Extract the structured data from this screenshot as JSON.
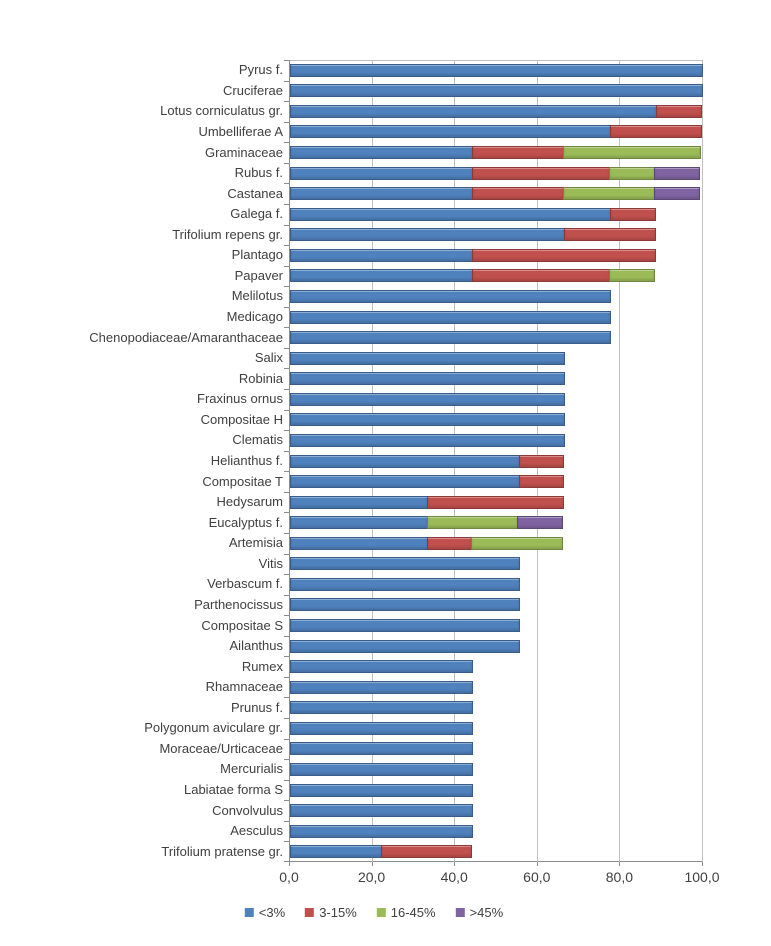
{
  "chart_data": {
    "type": "bar",
    "orientation": "horizontal",
    "stacked": true,
    "title": "",
    "xlabel": "",
    "ylabel": "",
    "xlim": [
      0,
      100
    ],
    "x_tick_labels": [
      "0,0",
      "20,0",
      "40,0",
      "60,0",
      "80,0",
      "100,0"
    ],
    "x_tick_values": [
      0,
      20,
      40,
      60,
      80,
      100
    ],
    "grid": "vertical",
    "legend_position": "bottom",
    "categories": [
      "Pyrus f.",
      "Cruciferae",
      "Lotus corniculatus gr.",
      "Umbelliferae A",
      "Graminaceae",
      "Rubus f.",
      "Castanea",
      "Galega f.",
      "Trifolium repens gr.",
      "Plantago",
      "Papaver",
      "Melilotus",
      "Medicago",
      "Chenopodiaceae/Amaranthaceae",
      "Salix",
      "Robinia",
      "Fraxinus ornus",
      "Compositae H",
      "Clematis",
      "Helianthus f.",
      "Compositae T",
      "Hedysarum",
      "Eucalyptus f.",
      "Artemisia",
      "Vitis",
      "Verbascum f.",
      "Parthenocissus",
      "Compositae S",
      "Ailanthus",
      "Rumex",
      "Rhamnaceae",
      "Prunus f.",
      "Polygonum aviculare gr.",
      "Moraceae/Urticaceae",
      "Mercurialis",
      "Labiatae forma S",
      "Convolvulus",
      "Aesculus",
      "Trifolium pratense gr."
    ],
    "series": [
      {
        "name": "<3%",
        "color": "#4F81BD",
        "values": [
          100,
          100,
          88.9,
          77.8,
          44.4,
          44.4,
          44.4,
          77.8,
          66.7,
          44.4,
          44.4,
          77.8,
          77.8,
          77.8,
          66.7,
          66.7,
          66.7,
          66.7,
          66.7,
          55.6,
          55.6,
          33.3,
          33.3,
          33.3,
          55.6,
          55.6,
          55.6,
          55.6,
          55.6,
          44.4,
          44.4,
          44.4,
          44.4,
          44.4,
          44.4,
          44.4,
          44.4,
          44.4,
          22.2
        ]
      },
      {
        "name": "3-15%",
        "color": "#C0504D",
        "values": [
          0,
          0,
          11.1,
          22.2,
          22.2,
          33.3,
          22.2,
          11.1,
          22.2,
          44.4,
          33.3,
          0,
          0,
          0,
          0,
          0,
          0,
          0,
          0,
          11.1,
          11.1,
          33.3,
          0,
          11.1,
          0,
          0,
          0,
          0,
          0,
          0,
          0,
          0,
          0,
          0,
          0,
          0,
          0,
          0,
          22.2
        ]
      },
      {
        "name": "16-45%",
        "color": "#9BBB59",
        "values": [
          0,
          0,
          0,
          0,
          33.3,
          11.1,
          22.2,
          0,
          0,
          0,
          11.1,
          0,
          0,
          0,
          0,
          0,
          0,
          0,
          0,
          0,
          0,
          0,
          22.2,
          22.2,
          0,
          0,
          0,
          0,
          0,
          0,
          0,
          0,
          0,
          0,
          0,
          0,
          0,
          0,
          0
        ]
      },
      {
        "name": ">45%",
        "color": "#8064A2",
        "values": [
          0,
          0,
          0,
          0,
          0,
          11.1,
          11.1,
          0,
          0,
          0,
          0,
          0,
          0,
          0,
          0,
          0,
          0,
          0,
          0,
          0,
          0,
          0,
          11.1,
          0,
          0,
          0,
          0,
          0,
          0,
          0,
          0,
          0,
          0,
          0,
          0,
          0,
          0,
          0,
          0
        ]
      }
    ]
  },
  "legend": {
    "items": [
      {
        "label": "<3%",
        "color": "#4F81BD"
      },
      {
        "label": "3-15%",
        "color": "#C0504D"
      },
      {
        "label": "16-45%",
        "color": "#9BBB59"
      },
      {
        "label": ">45%",
        "color": "#8064A2"
      }
    ]
  },
  "style": {
    "gridline_color": "#BFBFBF",
    "axis_color": "#8C8C8C",
    "text_color": "#404040"
  }
}
